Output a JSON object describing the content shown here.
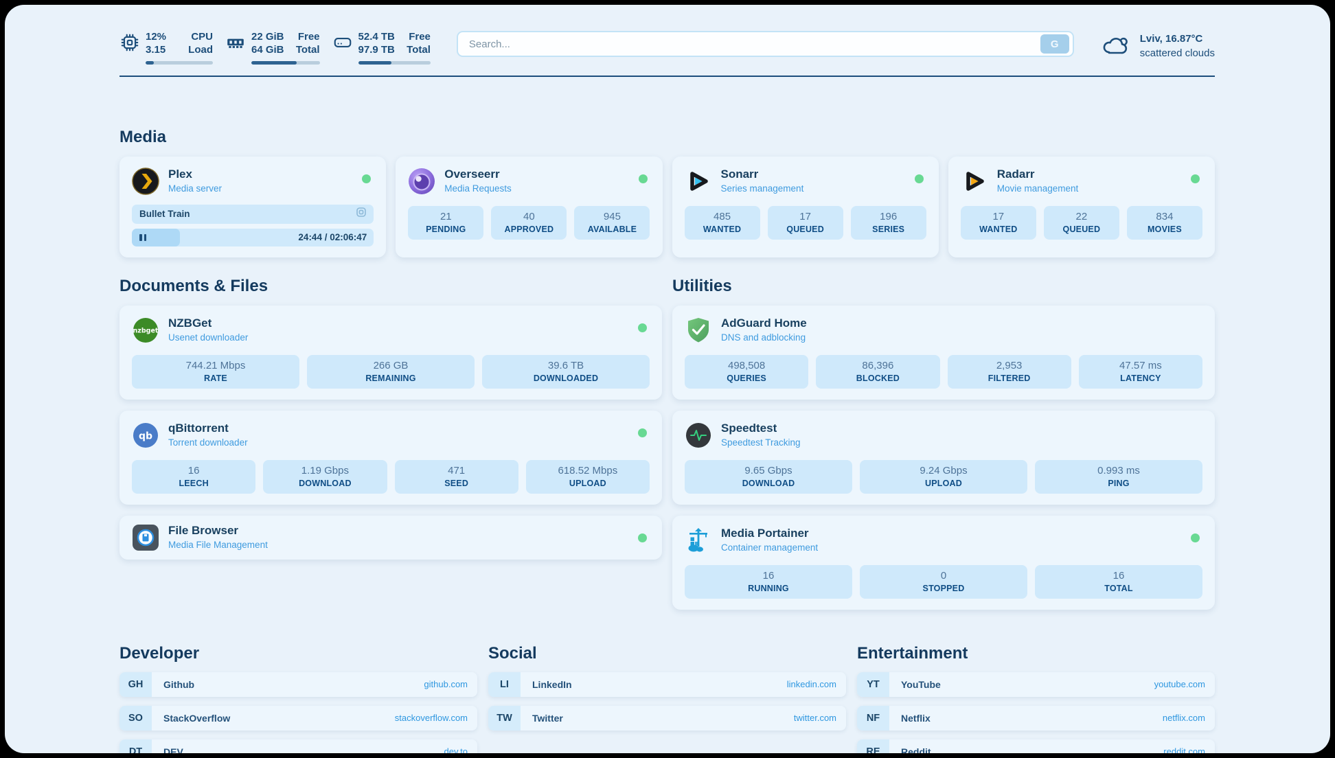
{
  "header": {
    "metrics": [
      {
        "icon": "cpu-icon",
        "value_top": "12%",
        "value_bottom": "3.15",
        "label_top": "CPU",
        "label_bottom": "Load",
        "progress_pct": 12
      },
      {
        "icon": "ram-icon",
        "value_top": "22 GiB",
        "value_bottom": "64 GiB",
        "label_top": "Free",
        "label_bottom": "Total",
        "progress_pct": 66
      },
      {
        "icon": "disk-icon",
        "value_top": "52.4 TB",
        "value_bottom": "97.9 TB",
        "label_top": "Free",
        "label_bottom": "Total",
        "progress_pct": 46
      }
    ],
    "search": {
      "placeholder": "Search...",
      "button_label": "G"
    },
    "weather": {
      "icon": "cloud-icon",
      "location": "Lviv, 16.87°C",
      "condition": "scattered clouds"
    }
  },
  "sections": {
    "media": {
      "title": "Media",
      "apps": [
        {
          "name": "Plex",
          "subtitle": "Media server",
          "icon": "plex-icon",
          "online": true,
          "player": {
            "title": "Bullet Train",
            "time": "24:44 / 02:06:47",
            "progress_pct": 20
          }
        },
        {
          "name": "Overseerr",
          "subtitle": "Media Requests",
          "icon": "overseerr-icon",
          "online": true,
          "stats": [
            {
              "value": "21",
              "label": "PENDING"
            },
            {
              "value": "40",
              "label": "APPROVED"
            },
            {
              "value": "945",
              "label": "AVAILABLE"
            }
          ]
        },
        {
          "name": "Sonarr",
          "subtitle": "Series management",
          "icon": "sonarr-icon",
          "online": true,
          "stats": [
            {
              "value": "485",
              "label": "WANTED"
            },
            {
              "value": "17",
              "label": "QUEUED"
            },
            {
              "value": "196",
              "label": "SERIES"
            }
          ]
        },
        {
          "name": "Radarr",
          "subtitle": "Movie management",
          "icon": "radarr-icon",
          "online": true,
          "stats": [
            {
              "value": "17",
              "label": "WANTED"
            },
            {
              "value": "22",
              "label": "QUEUED"
            },
            {
              "value": "834",
              "label": "MOVIES"
            }
          ]
        }
      ]
    },
    "documents": {
      "title": "Documents & Files",
      "apps": [
        {
          "name": "NZBGet",
          "subtitle": "Usenet downloader",
          "icon": "nzbget-icon",
          "icon_text": "nzbget",
          "online": true,
          "stats": [
            {
              "value": "744.21 Mbps",
              "label": "RATE"
            },
            {
              "value": "266 GB",
              "label": "REMAINING"
            },
            {
              "value": "39.6 TB",
              "label": "DOWNLOADED"
            }
          ]
        },
        {
          "name": "qBittorrent",
          "subtitle": "Torrent downloader",
          "icon": "qbittorrent-icon",
          "icon_text": "qb",
          "online": true,
          "stats": [
            {
              "value": "16",
              "label": "LEECH"
            },
            {
              "value": "1.19 Gbps",
              "label": "DOWNLOAD"
            },
            {
              "value": "471",
              "label": "SEED"
            },
            {
              "value": "618.52 Mbps",
              "label": "UPLOAD"
            }
          ]
        },
        {
          "name": "File Browser",
          "subtitle": "Media File Management",
          "icon": "filebrowser-icon",
          "online": true,
          "stats": []
        }
      ]
    },
    "utilities": {
      "title": "Utilities",
      "apps": [
        {
          "name": "AdGuard Home",
          "subtitle": "DNS and adblocking",
          "icon": "adguard-icon",
          "online": false,
          "stats": [
            {
              "value": "498,508",
              "label": "QUERIES"
            },
            {
              "value": "86,396",
              "label": "BLOCKED"
            },
            {
              "value": "2,953",
              "label": "FILTERED"
            },
            {
              "value": "47.57 ms",
              "label": "LATENCY"
            }
          ]
        },
        {
          "name": "Speedtest",
          "subtitle": "Speedtest Tracking",
          "icon": "speedtest-icon",
          "online": false,
          "stats": [
            {
              "value": "9.65 Gbps",
              "label": "DOWNLOAD"
            },
            {
              "value": "9.24 Gbps",
              "label": "UPLOAD"
            },
            {
              "value": "0.993 ms",
              "label": "PING"
            }
          ]
        },
        {
          "name": "Media Portainer",
          "subtitle": "Container management",
          "icon": "portainer-icon",
          "online": true,
          "stats": [
            {
              "value": "16",
              "label": "RUNNING"
            },
            {
              "value": "0",
              "label": "STOPPED"
            },
            {
              "value": "16",
              "label": "TOTAL"
            }
          ]
        }
      ]
    }
  },
  "link_sections": [
    {
      "title": "Developer",
      "links": [
        {
          "abbr": "GH",
          "name": "Github",
          "url": "github.com"
        },
        {
          "abbr": "SO",
          "name": "StackOverflow",
          "url": "stackoverflow.com"
        },
        {
          "abbr": "DT",
          "name": "DEV",
          "url": "dev.to"
        }
      ]
    },
    {
      "title": "Social",
      "links": [
        {
          "abbr": "LI",
          "name": "LinkedIn",
          "url": "linkedin.com"
        },
        {
          "abbr": "TW",
          "name": "Twitter",
          "url": "twitter.com"
        }
      ]
    },
    {
      "title": "Entertainment",
      "links": [
        {
          "abbr": "YT",
          "name": "YouTube",
          "url": "youtube.com"
        },
        {
          "abbr": "NF",
          "name": "Netflix",
          "url": "netflix.com"
        },
        {
          "abbr": "RE",
          "name": "Reddit",
          "url": "reddit.com"
        }
      ]
    }
  ],
  "colors": {
    "accent_blue": "#3f9bdf",
    "navy_text": "#1d4e7a",
    "status_online_green": "#68d993",
    "stat_pill_blue": "#cfe9fb",
    "page_background": "#e9f2fa"
  }
}
